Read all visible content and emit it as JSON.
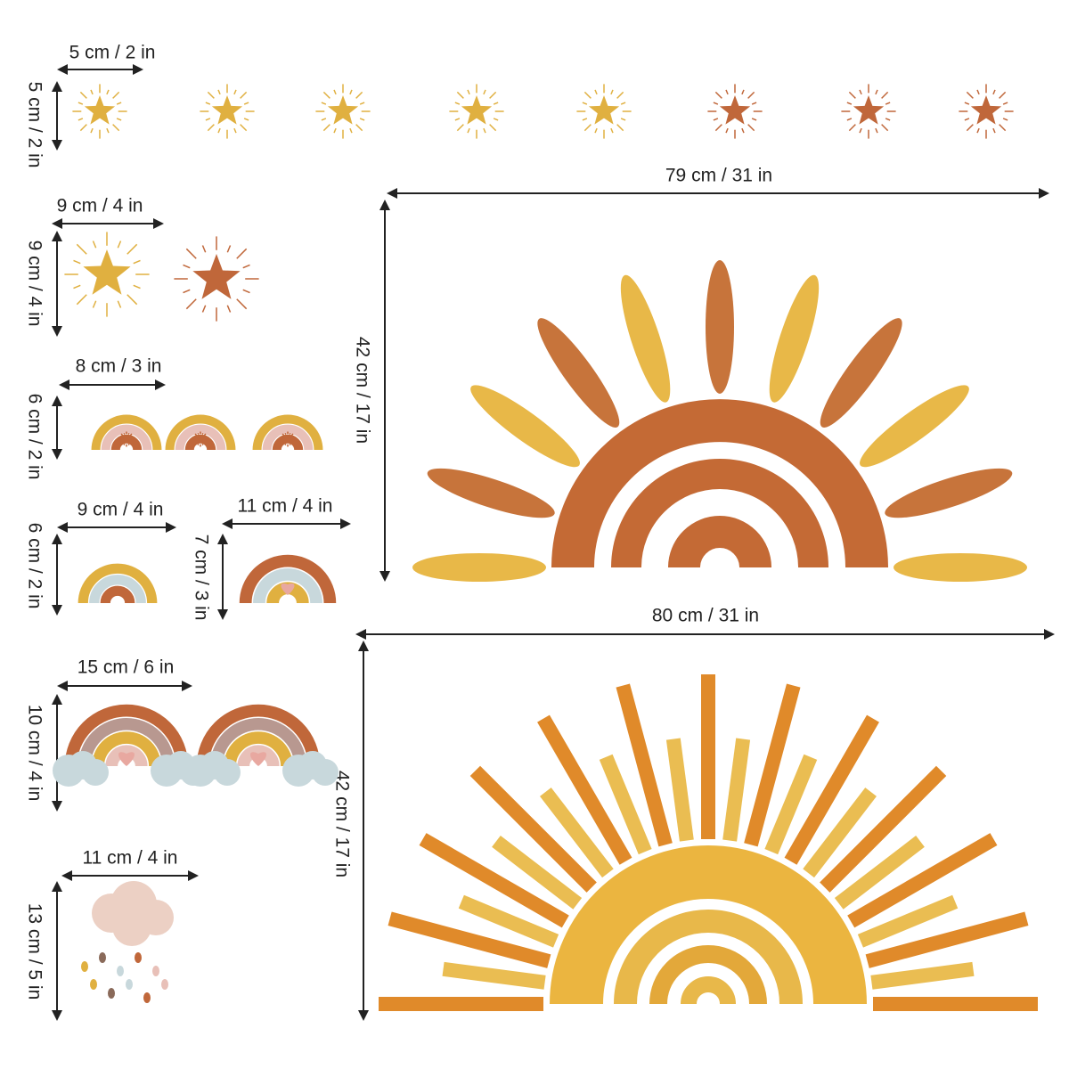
{
  "dimensions": [
    {
      "width": "5 cm / 2 in",
      "height": "5 cm / 2 in"
    },
    {
      "width": "9 cm / 4 in",
      "height": "9 cm / 4 in"
    },
    {
      "width": "8 cm / 3 in",
      "height": "6 cm / 2 in"
    },
    {
      "width": "9 cm / 4 in",
      "height": "6 cm / 2 in"
    },
    {
      "width": "11 cm / 4 in",
      "height": "7 cm / 3 in"
    },
    {
      "width": "15 cm / 6 in",
      "height": "10 cm / 4 in"
    },
    {
      "width": "11 cm / 4 in",
      "height": "13 cm / 5 in"
    },
    {
      "width": "79 cm / 31 in",
      "height": "42 cm / 17 in"
    },
    {
      "width": "80 cm / 31 in",
      "height": "42 cm / 17 in"
    }
  ]
}
